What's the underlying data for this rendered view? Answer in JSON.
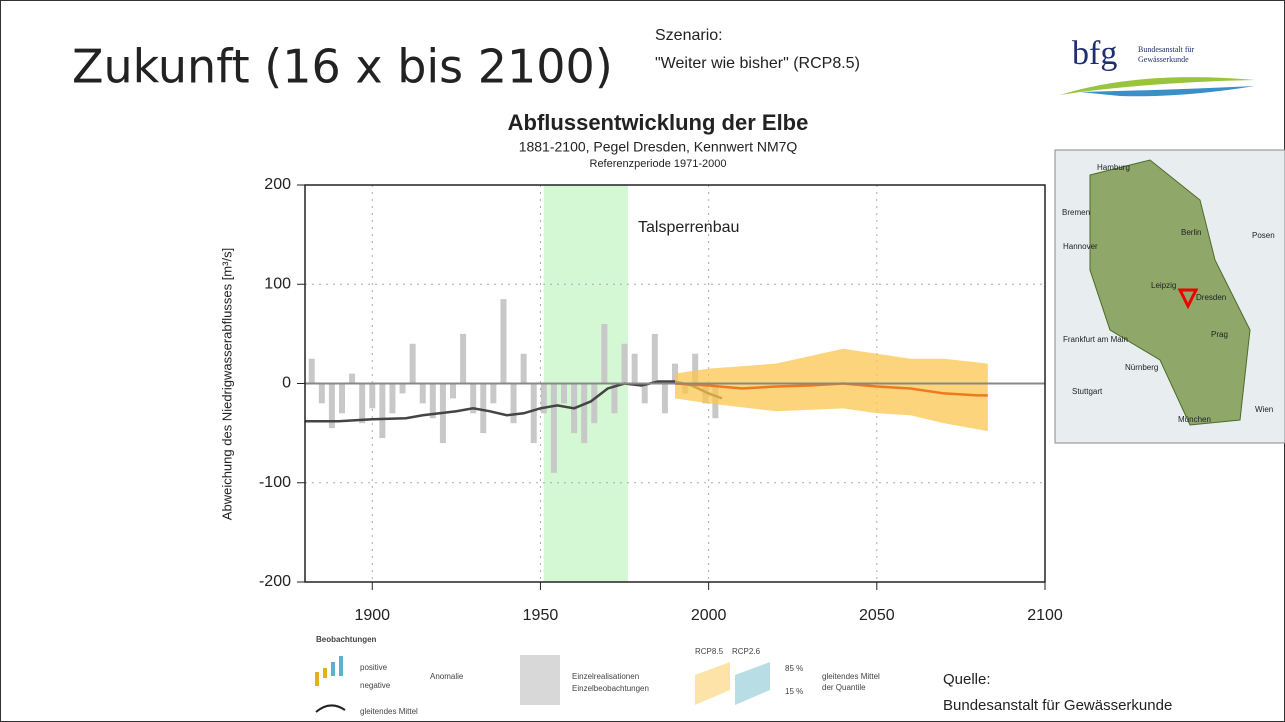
{
  "slide": {
    "title": "Zukunft (16 x bis 2100)",
    "scenario_label": "Szenario:",
    "scenario": "\"Weiter wie bisher\" (RCP8.5)",
    "logo": "bfg",
    "logo_sub1": "Bundesanstalt für",
    "logo_sub2": "Gewässerkunde",
    "source_label": "Quelle:",
    "source": "Bundesanstalt für Gewässerkunde"
  },
  "map": {
    "labels": [
      "Hamburg",
      "Bremen",
      "Berlin",
      "Posen",
      "Hannover",
      "Leipzig",
      "Dresden",
      "Frankfurt am Main",
      "Prag",
      "Nürnberg",
      "Stuttgart",
      "München",
      "Wien"
    ]
  },
  "legend": {
    "observations": "Beobachtungen",
    "positive": "positive",
    "negative": "negative",
    "anomaly": "Anomalie",
    "mean": "gleitendes Mittel",
    "realisations": "Einzelrealisationen",
    "single_obs": "Einzelbeobachtungen",
    "rcp85": "RCP8.5",
    "rcp26": "RCP2.6",
    "q85": "85 %",
    "q15": "15 %",
    "quantile_mean1": "gleitendes Mittel",
    "quantile_mean2": "der Quantile"
  },
  "chart_data": {
    "type": "line",
    "title": "Abflussentwicklung der Elbe",
    "subtitle": "1881-2100, Pegel Dresden, Kennwert NM7Q",
    "note": "Referenzperiode 1971-2000",
    "ylabel": "Abweichung des Niedrigwasserabflusses [m³/s]",
    "annotation": "Talsperrenbau",
    "highlight": [
      1951,
      1976
    ],
    "xlim": [
      1880,
      2100
    ],
    "ylim": [
      -200,
      200
    ],
    "xticks": [
      1900,
      1950,
      2000,
      2050,
      2100
    ],
    "yticks": [
      -200,
      -100,
      0,
      100,
      200
    ],
    "grid": true,
    "series": [
      {
        "kind": "bars",
        "color": "#c8c8c8",
        "x": [
          1882,
          1885,
          1888,
          1891,
          1894,
          1897,
          1900,
          1903,
          1906,
          1909,
          1912,
          1915,
          1918,
          1921,
          1924,
          1927,
          1930,
          1933,
          1936,
          1939,
          1942,
          1945,
          1948,
          1951,
          1954,
          1957,
          1960,
          1963,
          1966,
          1969,
          1972,
          1975,
          1978,
          1981,
          1984,
          1987,
          1990,
          1993,
          1996,
          1999,
          2002
        ],
        "values": [
          25,
          -20,
          -45,
          -30,
          10,
          -40,
          -25,
          -55,
          -30,
          -10,
          40,
          -20,
          -35,
          -60,
          -15,
          50,
          -30,
          -50,
          -20,
          85,
          -40,
          30,
          -60,
          -30,
          -90,
          -20,
          -50,
          -60,
          -40,
          60,
          -30,
          40,
          30,
          -20,
          50,
          -30,
          20,
          -10,
          30,
          -20,
          -35
        ]
      },
      {
        "kind": "line",
        "color": "#444444",
        "x": [
          1880,
          1890,
          1900,
          1910,
          1915,
          1920,
          1925,
          1930,
          1935,
          1940,
          1945,
          1950,
          1955,
          1960,
          1965,
          1970,
          1975,
          1980,
          1985,
          1990,
          1995,
          2000,
          2004
        ],
        "values": [
          -38,
          -38,
          -36,
          -35,
          -32,
          -30,
          -28,
          -25,
          -28,
          -32,
          -30,
          -25,
          -22,
          -25,
          -18,
          -5,
          0,
          -2,
          2,
          2,
          -2,
          -10,
          -15
        ]
      },
      {
        "kind": "band",
        "color": "#fbc64f",
        "x": [
          1990,
          2000,
          2020,
          2040,
          2050,
          2060,
          2070,
          2083
        ],
        "values": [
          10,
          15,
          20,
          35,
          30,
          25,
          25,
          20
        ],
        "lower": [
          -15,
          -20,
          -28,
          -25,
          -30,
          -32,
          -40,
          -48
        ]
      },
      {
        "kind": "line",
        "color": "#f07820",
        "x": [
          1990,
          2000,
          2010,
          2020,
          2030,
          2040,
          2050,
          2060,
          2070,
          2080,
          2083
        ],
        "values": [
          0,
          -2,
          -5,
          -3,
          -2,
          0,
          -3,
          -5,
          -10,
          -12,
          -12
        ]
      }
    ]
  }
}
